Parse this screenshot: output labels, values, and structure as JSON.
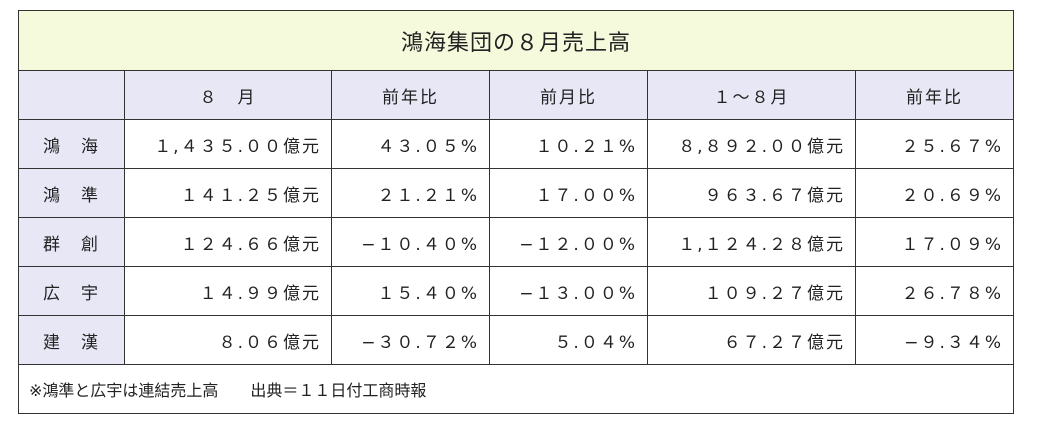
{
  "title": "鴻海集団の８月売上高",
  "table": {
    "header": [
      "",
      "８　月",
      "前年比",
      "前月比",
      "１〜８月",
      "前年比"
    ],
    "rows": [
      [
        "鴻　海",
        "１,４３５.００億元",
        "４３.０５%",
        "１０.２１%",
        "８,８９２.００億元",
        "２５.６７%"
      ],
      [
        "鴻　準",
        "１４１.２５億元",
        "２１.２１%",
        "１７.００%",
        "９６３.６７億元",
        "２０.６９%"
      ],
      [
        "群　創",
        "１２４.６６億元",
        "−１０.４０%",
        "−１２.００%",
        "１,１２４.２８億元",
        "１７.０９%"
      ],
      [
        "広　宇",
        "１４.９９億元",
        "１５.４０%",
        "−１３.００%",
        "１０９.２７億元",
        "２６.７８%"
      ],
      [
        "建　漢",
        "８.０６億元",
        "−３０.７２%",
        "５.０４%",
        "６７.２７億元",
        "−９.３４%"
      ]
    ]
  },
  "note": "※鴻準と広宇は連結売上高　　出典＝１１日付工商時報"
}
